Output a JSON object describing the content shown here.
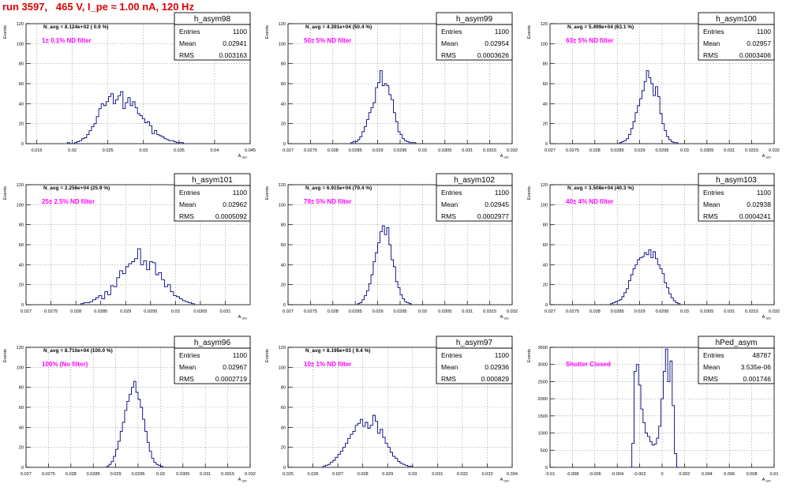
{
  "header": {
    "title": "run 3597,   465 V, I_pe ≈ 1.00 nA, 120 Hz"
  },
  "colors": {
    "title": "#e00000",
    "annotation": "#ff00ff",
    "histogram_line": "#000080"
  },
  "stats_labels": {
    "entries": "Entries",
    "mean": "Mean",
    "rms": "RMS"
  },
  "chart_data": [
    {
      "type": "histogram",
      "name": "h_asym98",
      "annotation_top": "N_avg = 8.124e+02 ( 0.9 %)",
      "annotation_filter": "1± 0.1% ND filter",
      "stats": {
        "entries": "1100",
        "mean": "0.02941",
        "rms": "0.003163"
      },
      "xlim": [
        0.0135,
        0.045
      ],
      "ylim": [
        0,
        120
      ],
      "xticks": [
        "0.015",
        "0.02",
        "0.025",
        "0.03",
        "0.035",
        "0.04",
        "0.045"
      ],
      "yticks": [
        "0",
        "20",
        "40",
        "60",
        "80",
        "100",
        "120"
      ],
      "xlabel": "A_UID",
      "ylabel": "Events",
      "grid": true,
      "bin_start": 0.0193,
      "bin_width": 0.00034,
      "counts": [
        1,
        0,
        0,
        1,
        2,
        3,
        5,
        6,
        9,
        13,
        17,
        20,
        27,
        35,
        40,
        38,
        42,
        47,
        50,
        40,
        44,
        48,
        52,
        35,
        41,
        46,
        38,
        42,
        36,
        30,
        28,
        25,
        21,
        22,
        18,
        10,
        13,
        9,
        8,
        7,
        5,
        4,
        3,
        3,
        2,
        1,
        1,
        1
      ]
    },
    {
      "type": "histogram",
      "name": "h_asym99",
      "annotation_top": "N_avg = 4.391e+04 (50.4 %)",
      "annotation_filter": "50± 5% ND filter",
      "stats": {
        "entries": "1100",
        "mean": "0.02954",
        "rms": "0.0003626"
      },
      "xlim": [
        0.027,
        0.032
      ],
      "ylim": [
        0,
        120
      ],
      "xticks": [
        "0.027",
        "0.0275",
        "0.028",
        "0.0285",
        "0.029",
        "0.0295",
        "0.03",
        "0.0305",
        "0.031",
        "0.0315",
        "0.032"
      ],
      "yticks": [
        "0",
        "20",
        "40",
        "60",
        "80",
        "100",
        "120"
      ],
      "xlabel": "A_UID",
      "ylabel": "Events",
      "grid": true,
      "bin_start": 0.0284,
      "bin_width": 5e-05,
      "counts": [
        1,
        2,
        2,
        4,
        7,
        12,
        17,
        24,
        31,
        36,
        41,
        56,
        61,
        73,
        58,
        60,
        58,
        49,
        44,
        31,
        22,
        12,
        9,
        5,
        3,
        2,
        1,
        1,
        1
      ]
    },
    {
      "type": "histogram",
      "name": "h_asym100",
      "annotation_top": "N_avg = 5.499e+04 (63.1 %)",
      "annotation_filter": "63± 5% ND filter",
      "stats": {
        "entries": "1100",
        "mean": "0.02957",
        "rms": "0.0003406"
      },
      "xlim": [
        0.027,
        0.032
      ],
      "ylim": [
        0,
        120
      ],
      "xticks": [
        "0.027",
        "0.0275",
        "0.028",
        "0.0285",
        "0.029",
        "0.0295",
        "0.03",
        "0.0305",
        "0.031",
        "0.0315",
        "0.032"
      ],
      "yticks": [
        "0",
        "20",
        "40",
        "60",
        "80",
        "100",
        "120"
      ],
      "xlabel": "A_UID",
      "ylabel": "Events",
      "grid": true,
      "bin_start": 0.02855,
      "bin_width": 5e-05,
      "counts": [
        1,
        2,
        3,
        5,
        9,
        15,
        22,
        31,
        38,
        45,
        53,
        62,
        73,
        66,
        60,
        48,
        57,
        47,
        30,
        20,
        13,
        7,
        4,
        2,
        1,
        1
      ]
    },
    {
      "type": "histogram",
      "name": "h_asym101",
      "annotation_top": "N_avg = 2.256e+04 (25.9 %)",
      "annotation_filter": "25± 2.5% ND filter",
      "stats": {
        "entries": "1100",
        "mean": "0.02962",
        "rms": "0.0005092"
      },
      "xlim": [
        0.027,
        0.0315
      ],
      "ylim": [
        0,
        120
      ],
      "xticks": [
        "0.027",
        "0.0275",
        "0.028",
        "0.0285",
        "0.029",
        "0.0295",
        "0.03",
        "0.0305",
        "0.031"
      ],
      "yticks": [
        "0",
        "20",
        "40",
        "60",
        "80",
        "100",
        "120"
      ],
      "xlabel": "A_UID",
      "ylabel": "Events",
      "grid": true,
      "bin_start": 0.0281,
      "bin_width": 6e-05,
      "counts": [
        1,
        2,
        2,
        3,
        5,
        7,
        9,
        6,
        13,
        10,
        19,
        18,
        27,
        34,
        31,
        38,
        41,
        43,
        46,
        56,
        40,
        44,
        35,
        43,
        42,
        30,
        32,
        25,
        18,
        20,
        13,
        9,
        8,
        6,
        4,
        3,
        2,
        1
      ]
    },
    {
      "type": "histogram",
      "name": "h_asym102",
      "annotation_top": "N_avg = 6.915e+04 (79.4 %)",
      "annotation_filter": "79± 5% ND filter",
      "stats": {
        "entries": "1100",
        "mean": "0.02945",
        "rms": "0.0002977"
      },
      "xlim": [
        0.027,
        0.032
      ],
      "ylim": [
        0,
        120
      ],
      "xticks": [
        "0.027",
        "0.0275",
        "0.028",
        "0.0285",
        "0.029",
        "0.0295",
        "0.03",
        "0.0305",
        "0.031",
        "0.0315",
        "0.032"
      ],
      "yticks": [
        "0",
        "20",
        "40",
        "60",
        "80",
        "100",
        "120"
      ],
      "xlabel": "A_UID",
      "ylabel": "Events",
      "grid": true,
      "bin_start": 0.02855,
      "bin_width": 5e-05,
      "counts": [
        1,
        2,
        5,
        9,
        14,
        21,
        30,
        43,
        52,
        62,
        73,
        79,
        70,
        77,
        60,
        45,
        38,
        23,
        17,
        10,
        6,
        3,
        2,
        1
      ]
    },
    {
      "type": "histogram",
      "name": "h_asym103",
      "annotation_top": "N_avg = 3.508e+04 (40.3 %)",
      "annotation_filter": "40± 4% ND filter",
      "stats": {
        "entries": "1100",
        "mean": "0.02938",
        "rms": "0.0004241"
      },
      "xlim": [
        0.027,
        0.032
      ],
      "ylim": [
        0,
        120
      ],
      "xticks": [
        "0.027",
        "0.0275",
        "0.028",
        "0.0285",
        "0.029",
        "0.0295",
        "0.03",
        "0.0305",
        "0.031",
        "0.0315",
        "0.032"
      ],
      "yticks": [
        "0",
        "20",
        "40",
        "60",
        "80",
        "100",
        "120"
      ],
      "xlabel": "A_UID",
      "ylabel": "Events",
      "grid": true,
      "bin_start": 0.02835,
      "bin_width": 5e-05,
      "counts": [
        1,
        2,
        3,
        4,
        5,
        8,
        12,
        16,
        24,
        30,
        36,
        40,
        45,
        47,
        48,
        52,
        50,
        55,
        47,
        53,
        46,
        40,
        36,
        31,
        22,
        17,
        11,
        7,
        4,
        2,
        1
      ]
    },
    {
      "type": "histogram",
      "name": "h_asym96",
      "annotation_top": "N_avg = 8.710e+04 (100.0 %)",
      "annotation_filter": "100% (No filter)",
      "stats": {
        "entries": "1100",
        "mean": "0.02967",
        "rms": "0.0002719"
      },
      "xlim": [
        0.027,
        0.032
      ],
      "ylim": [
        0,
        120
      ],
      "xticks": [
        "0.027",
        "0.0275",
        "0.028",
        "0.0285",
        "0.029",
        "0.0295",
        "0.03",
        "0.0305",
        "0.031",
        "0.0315",
        "0.032"
      ],
      "yticks": [
        "0",
        "20",
        "40",
        "60",
        "80",
        "100",
        "120"
      ],
      "xlabel": "A_UID",
      "ylabel": "Events",
      "grid": true,
      "bin_start": 0.0288,
      "bin_width": 5e-05,
      "counts": [
        1,
        3,
        6,
        11,
        18,
        26,
        36,
        45,
        57,
        66,
        73,
        80,
        86,
        75,
        68,
        60,
        48,
        36,
        25,
        16,
        9,
        5,
        3,
        2,
        1
      ]
    },
    {
      "type": "histogram",
      "name": "h_asym97",
      "annotation_top": "N_avg = 8.195e+03 ( 9.4 %)",
      "annotation_filter": "10± 1% ND filter",
      "stats": {
        "entries": "1100",
        "mean": "0.02936",
        "rms": "0.000829"
      },
      "xlim": [
        0.025,
        0.034
      ],
      "ylim": [
        0,
        120
      ],
      "xticks": [
        "0.025",
        "0.026",
        "0.027",
        "0.028",
        "0.029",
        "0.03",
        "0.031",
        "0.032",
        "0.033",
        "0.034"
      ],
      "yticks": [
        "0",
        "20",
        "40",
        "60",
        "80",
        "100",
        "120"
      ],
      "xlabel": "A_UID",
      "ylabel": "Events",
      "grid": true,
      "bin_start": 0.0264,
      "bin_width": 0.0001,
      "counts": [
        1,
        2,
        3,
        5,
        7,
        10,
        13,
        16,
        20,
        24,
        29,
        33,
        36,
        42,
        44,
        48,
        41,
        45,
        39,
        42,
        52,
        46,
        34,
        38,
        30,
        24,
        20,
        15,
        11,
        9,
        6,
        4,
        3,
        2,
        1,
        1
      ]
    },
    {
      "type": "histogram",
      "name": "hPed_asym",
      "annotation_top": "",
      "annotation_filter": "Shutter Closed",
      "stats": {
        "entries": "48787",
        "mean": "3.535e-06",
        "rms": "0.001746"
      },
      "xlim": [
        -0.01,
        0.01
      ],
      "ylim": [
        0,
        3500
      ],
      "xticks": [
        "-0.01",
        "-0.008",
        "-0.006",
        "-0.004",
        "-0.002",
        "0",
        "0.002",
        "0.004",
        "0.006",
        "0.008",
        "0.01"
      ],
      "yticks": [
        "0",
        "500",
        "1000",
        "1500",
        "2000",
        "2500",
        "3000",
        "3500"
      ],
      "xlabel": "A_UID",
      "ylabel": "Events",
      "grid": true,
      "bin_start": -0.0029,
      "bin_width": 0.0002,
      "counts": [
        0,
        700,
        2800,
        3000,
        2400,
        1700,
        1300,
        1000,
        900,
        750,
        650,
        680,
        850,
        1200,
        2000,
        2800,
        3450,
        2500,
        3100,
        1800,
        400,
        0
      ]
    }
  ]
}
